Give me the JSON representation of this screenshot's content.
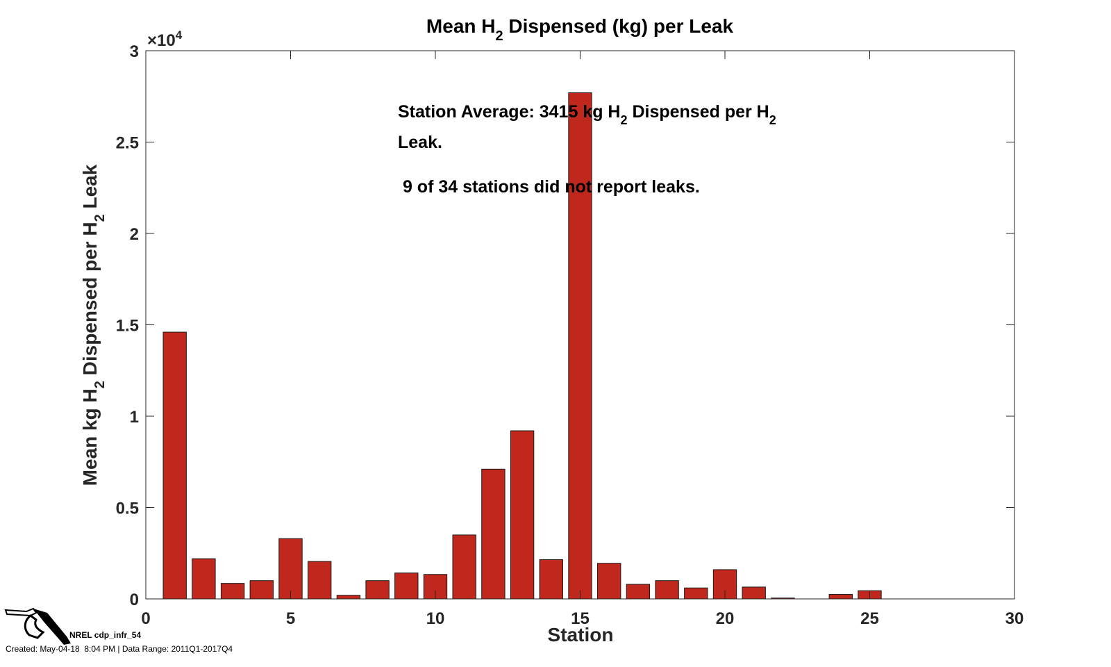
{
  "chart_data": {
    "type": "bar",
    "title": {
      "main": "Mean H",
      "sub": "2",
      "rest": " Dispensed (kg) per Leak"
    },
    "xlabel": "Station",
    "ylabel": {
      "part1": "Mean kg H",
      "sub1": "2",
      "part2": " Dispensed per H",
      "sub2": "2",
      "part3": " Leak"
    },
    "exponent": {
      "base": "×10",
      "power": "4"
    },
    "xlim": [
      0,
      30
    ],
    "ylim": [
      0,
      30000
    ],
    "xticks": [
      0,
      5,
      10,
      15,
      20,
      25,
      30
    ],
    "yticks": [
      0,
      5000,
      10000,
      15000,
      20000,
      25000,
      30000
    ],
    "ytick_labels": [
      "0",
      "0.5",
      "1",
      "1.5",
      "2",
      "2.5",
      "3"
    ],
    "bar_color": "#c0281e",
    "x": [
      1,
      2,
      3,
      4,
      5,
      6,
      7,
      8,
      9,
      10,
      11,
      12,
      13,
      14,
      15,
      16,
      17,
      18,
      19,
      20,
      21,
      22,
      23,
      24,
      25
    ],
    "values": [
      14600,
      2200,
      850,
      1000,
      3300,
      2050,
      200,
      1000,
      1420,
      1340,
      3500,
      7100,
      9200,
      2150,
      27700,
      1950,
      800,
      1000,
      600,
      1600,
      650,
      50,
      0,
      250,
      450
    ],
    "annotations": {
      "line1": {
        "a": "Station Average: 3415 kg H",
        "s1": "2",
        "b": " Dispensed per H",
        "s2": "2"
      },
      "line2": "Leak.",
      "line3": " 9 of 34 stations did not report leaks."
    }
  },
  "footer": {
    "id": "NREL cdp_infr_54",
    "meta": "Created: May-04-18  8:04 PM | Data Range: 2011Q1-2017Q4",
    "logo": "fuel-nozzle-icon"
  }
}
